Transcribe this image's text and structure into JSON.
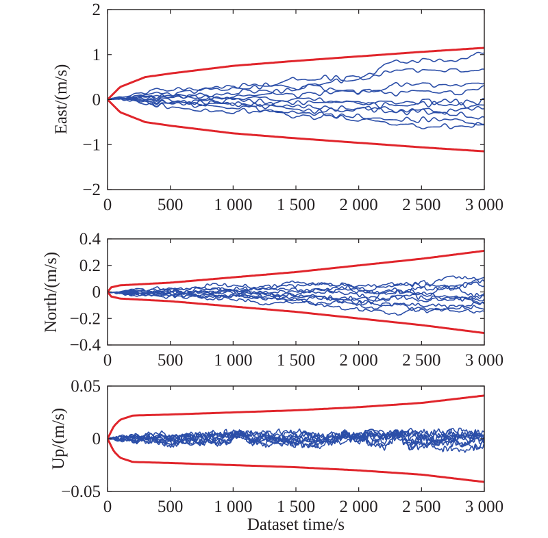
{
  "chart_data": [
    {
      "type": "line",
      "ylabel": "East/(m/s)",
      "xlabel": "",
      "xlim": [
        0,
        3000
      ],
      "ylim": [
        -2,
        2
      ],
      "x_ticks": [
        0,
        500,
        1000,
        1500,
        2000,
        2500,
        3000
      ],
      "x_tick_labels": [
        "0",
        "500",
        "1 000",
        "1 500",
        "2 000",
        "2 500",
        "3 000"
      ],
      "y_ticks": [
        2,
        1,
        0,
        -1,
        -2
      ],
      "y_tick_labels": [
        "2",
        "1",
        "0",
        "−1",
        "−2"
      ],
      "bound": {
        "x": [
          0,
          100,
          300,
          500,
          1000,
          1500,
          2000,
          2500,
          3000
        ],
        "y": [
          0,
          0.28,
          0.5,
          0.58,
          0.75,
          0.86,
          0.96,
          1.06,
          1.15
        ]
      },
      "noise_series_count": 10,
      "noise_end_values": [
        0.92,
        0.68,
        0.38,
        0.22,
        0.05,
        -0.15,
        -0.25,
        -0.4,
        -0.55,
        -0.65
      ],
      "noise_scale": 0.2,
      "noise_period": 130,
      "grid": false,
      "colors": {
        "bound": "#e0252b",
        "series": "#2b4ea8"
      }
    },
    {
      "type": "line",
      "ylabel": "North/(m/s)",
      "xlabel": "",
      "xlim": [
        0,
        3000
      ],
      "ylim": [
        -0.4,
        0.4
      ],
      "x_ticks": [
        0,
        500,
        1000,
        1500,
        2000,
        2500,
        3000
      ],
      "x_tick_labels": [
        "0",
        "500",
        "1 000",
        "1 500",
        "2 000",
        "2 500",
        "3 000"
      ],
      "y_ticks": [
        0.4,
        0.2,
        0,
        -0.2,
        -0.4
      ],
      "y_tick_labels": [
        "0.4",
        "0.2",
        "0",
        "−0.2",
        "−0.4"
      ],
      "bound": {
        "x": [
          0,
          30,
          100,
          500,
          1000,
          1500,
          2000,
          2500,
          3000
        ],
        "y": [
          0,
          0.035,
          0.05,
          0.07,
          0.11,
          0.15,
          0.2,
          0.25,
          0.31
        ]
      },
      "noise_series_count": 10,
      "noise_end_values": [
        0.1,
        0.06,
        0.03,
        0.01,
        -0.02,
        -0.05,
        -0.08,
        -0.1,
        -0.14,
        -0.18
      ],
      "noise_scale": 0.05,
      "noise_period": 70,
      "grid": false,
      "colors": {
        "bound": "#e0252b",
        "series": "#2b4ea8"
      }
    },
    {
      "type": "line",
      "ylabel": "Up/(m/s)",
      "xlabel": "Dataset time/s",
      "xlim": [
        0,
        3000
      ],
      "ylim": [
        -0.05,
        0.05
      ],
      "x_ticks": [
        0,
        500,
        1000,
        1500,
        2000,
        2500,
        3000
      ],
      "x_tick_labels": [
        "0",
        "500",
        "1 000",
        "1 500",
        "2 000",
        "2 500",
        "3 000"
      ],
      "y_ticks": [
        0.05,
        0,
        -0.05
      ],
      "y_tick_labels": [
        "0.05",
        "0",
        "−0.05"
      ],
      "bound": {
        "x": [
          0,
          50,
          100,
          200,
          500,
          1000,
          1500,
          2000,
          2500,
          3000
        ],
        "y": [
          0,
          0.012,
          0.018,
          0.022,
          0.023,
          0.025,
          0.027,
          0.03,
          0.034,
          0.041
        ]
      },
      "noise_series_count": 10,
      "noise_end_values": [
        0.004,
        -0.002,
        0.001,
        -0.005,
        0.003,
        0.0,
        -0.003,
        0.002,
        -0.001,
        0.0
      ],
      "noise_scale": 0.009,
      "noise_period": 35,
      "grid": false,
      "colors": {
        "bound": "#e0252b",
        "series": "#2b4ea8"
      }
    }
  ]
}
